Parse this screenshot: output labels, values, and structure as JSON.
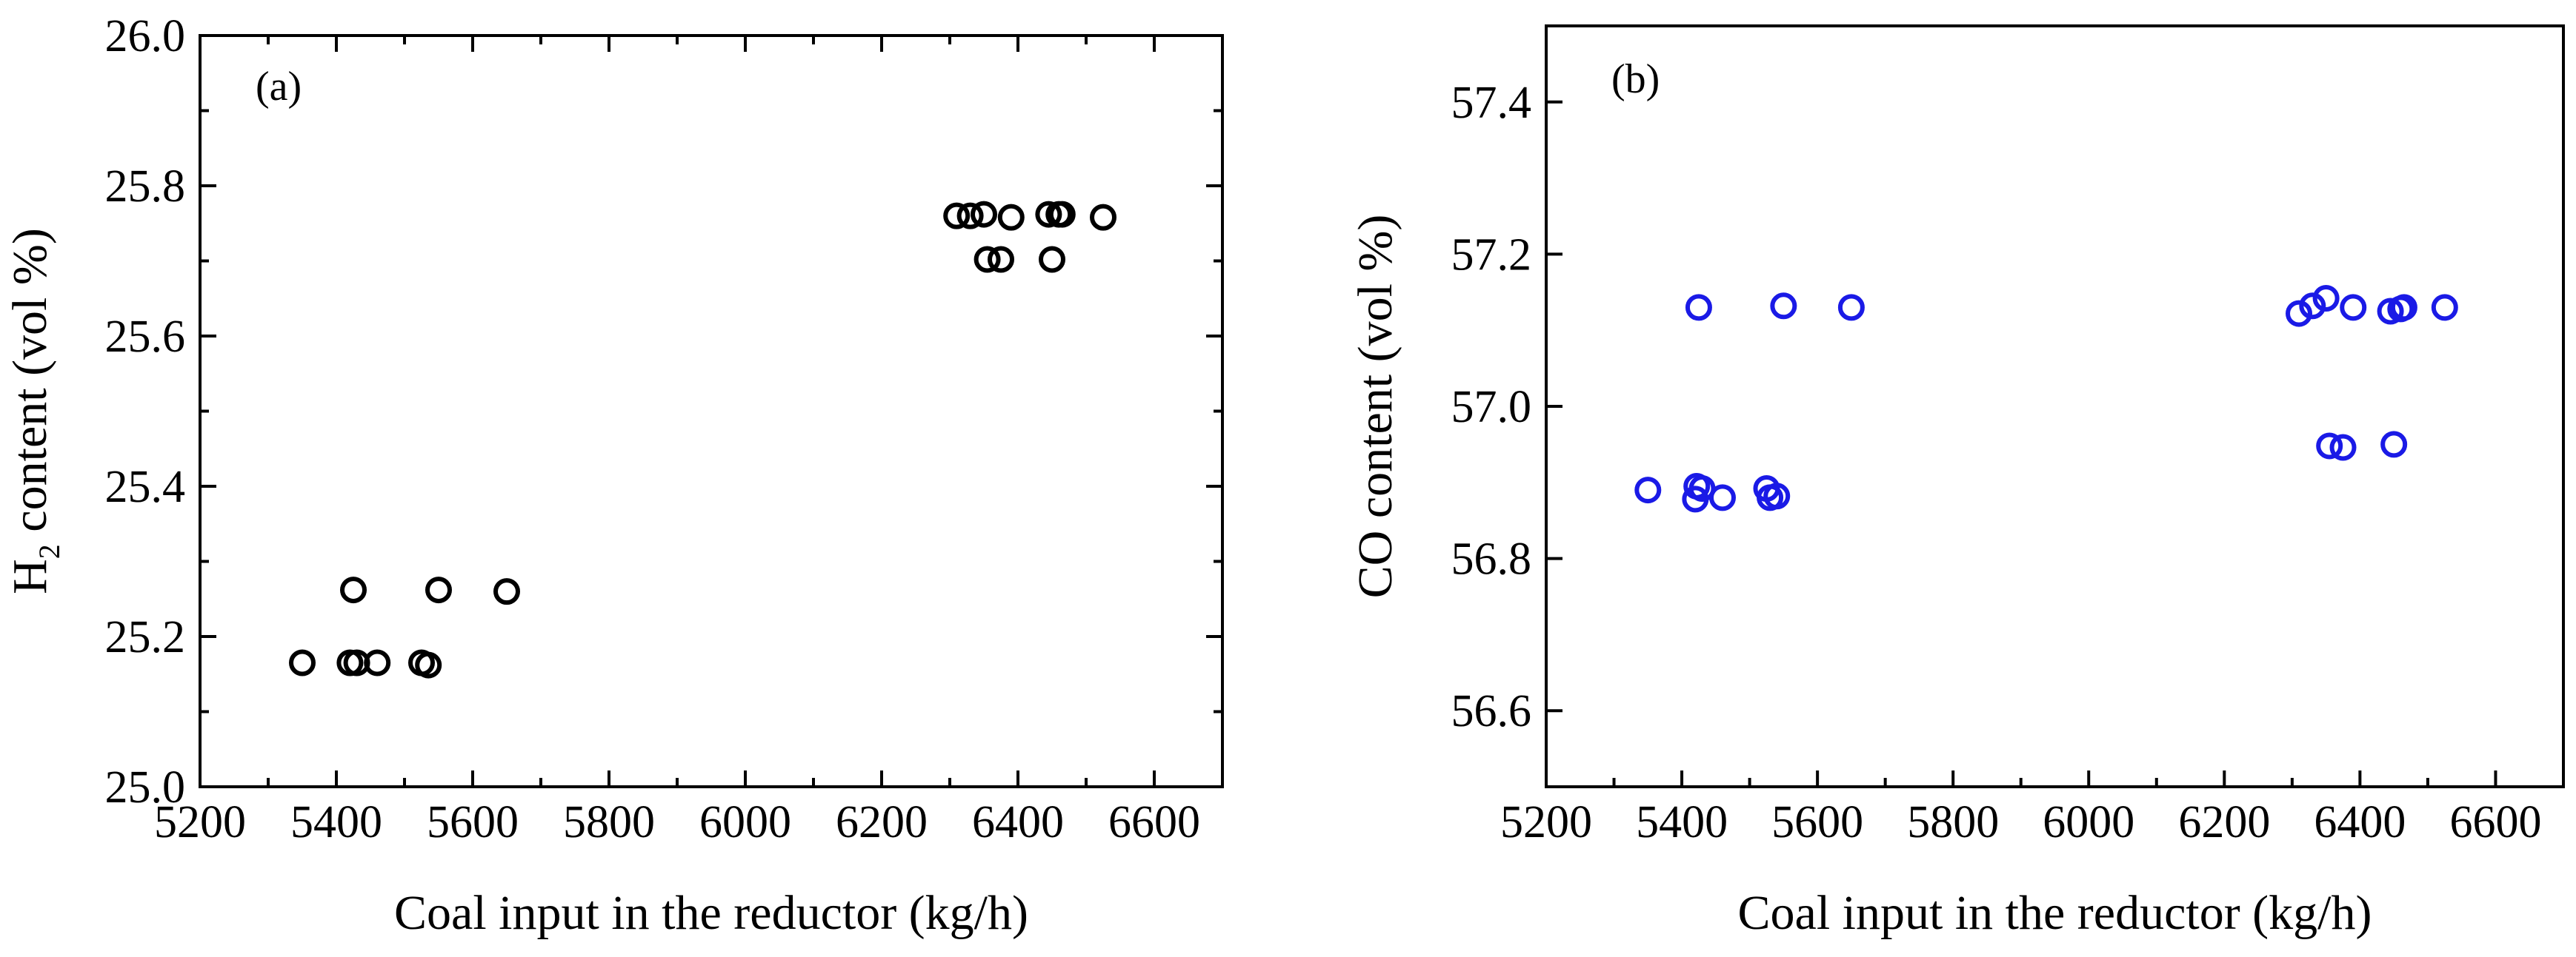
{
  "chart_data": [
    {
      "type": "scatter",
      "panel_label": "(a)",
      "title": "",
      "xlabel": "Coal input in the reductor (kg/h)",
      "ylabel": {
        "main": "H",
        "subscript": "2",
        "rest": " content (vol %)"
      },
      "xlim": [
        5200,
        6700
      ],
      "ylim": [
        25.0,
        26.0
      ],
      "x_ticks": [
        "5200",
        "5400",
        "5600",
        "5800",
        "6000",
        "6200",
        "6400",
        "6600"
      ],
      "y_ticks": [
        "25.0",
        "25.2",
        "25.4",
        "25.6",
        "25.8",
        "26.0"
      ],
      "marker": "open-circle",
      "color": "#000000",
      "series": [
        {
          "name": "H2 content",
          "points": [
            {
              "x": 5350,
              "y": 25.165
            },
            {
              "x": 5420,
              "y": 25.165
            },
            {
              "x": 5425,
              "y": 25.262
            },
            {
              "x": 5430,
              "y": 25.165
            },
            {
              "x": 5460,
              "y": 25.165
            },
            {
              "x": 5525,
              "y": 25.165
            },
            {
              "x": 5535,
              "y": 25.162
            },
            {
              "x": 5550,
              "y": 25.262
            },
            {
              "x": 5650,
              "y": 25.26
            },
            {
              "x": 6310,
              "y": 25.76
            },
            {
              "x": 6330,
              "y": 25.76
            },
            {
              "x": 6350,
              "y": 25.762
            },
            {
              "x": 6355,
              "y": 25.702
            },
            {
              "x": 6375,
              "y": 25.702
            },
            {
              "x": 6390,
              "y": 25.758
            },
            {
              "x": 6445,
              "y": 25.762
            },
            {
              "x": 6450,
              "y": 25.702
            },
            {
              "x": 6460,
              "y": 25.762
            },
            {
              "x": 6465,
              "y": 25.762
            },
            {
              "x": 6525,
              "y": 25.758
            }
          ]
        }
      ]
    },
    {
      "type": "scatter",
      "panel_label": "(b)",
      "title": "",
      "xlabel": "Coal input in the reductor (kg/h)",
      "ylabel": "CO content (vol %)",
      "xlim": [
        5200,
        6700
      ],
      "ylim": [
        56.5,
        57.5
      ],
      "x_ticks": [
        "5200",
        "5400",
        "5600",
        "5800",
        "6000",
        "6200",
        "6400",
        "6600"
      ],
      "y_ticks": [
        "56.6",
        "56.8",
        "57.0",
        "57.2",
        "57.4"
      ],
      "marker": "open-circle",
      "color": "#1a1ae6",
      "series": [
        {
          "name": "CO content",
          "points": [
            {
              "x": 5350,
              "y": 56.89
            },
            {
              "x": 5420,
              "y": 56.878
            },
            {
              "x": 5422,
              "y": 56.895
            },
            {
              "x": 5425,
              "y": 57.13
            },
            {
              "x": 5430,
              "y": 56.892
            },
            {
              "x": 5460,
              "y": 56.88
            },
            {
              "x": 5525,
              "y": 56.892
            },
            {
              "x": 5530,
              "y": 56.88
            },
            {
              "x": 5540,
              "y": 56.882
            },
            {
              "x": 5550,
              "y": 57.132
            },
            {
              "x": 5650,
              "y": 57.13
            },
            {
              "x": 6310,
              "y": 57.122
            },
            {
              "x": 6330,
              "y": 57.132
            },
            {
              "x": 6350,
              "y": 57.142
            },
            {
              "x": 6355,
              "y": 56.948
            },
            {
              "x": 6375,
              "y": 56.946
            },
            {
              "x": 6390,
              "y": 57.13
            },
            {
              "x": 6445,
              "y": 57.125
            },
            {
              "x": 6450,
              "y": 56.95
            },
            {
              "x": 6460,
              "y": 57.128
            },
            {
              "x": 6465,
              "y": 57.13
            },
            {
              "x": 6525,
              "y": 57.13
            }
          ]
        }
      ]
    }
  ]
}
